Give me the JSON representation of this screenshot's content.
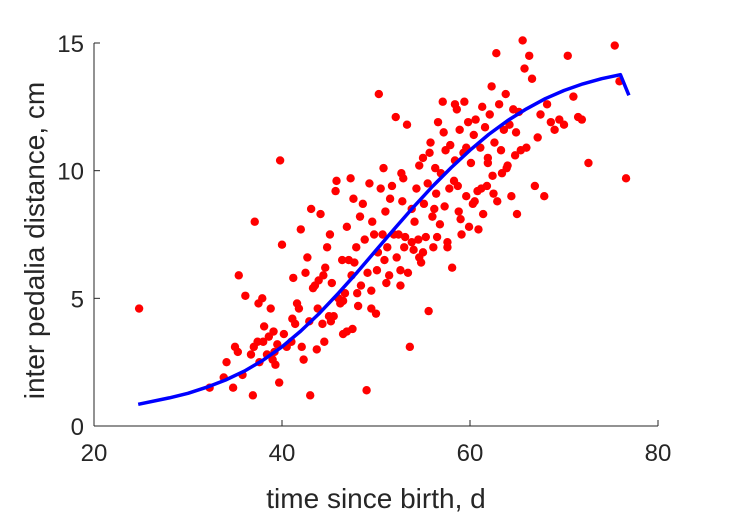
{
  "chart_data": {
    "type": "scatter",
    "title": "",
    "xlabel": "time since birth, d",
    "ylabel": "inter pedalia distance, cm",
    "xlim": [
      20,
      80
    ],
    "ylim": [
      0,
      15
    ],
    "xticks": [
      20,
      40,
      60,
      80
    ],
    "yticks": [
      0,
      5,
      10,
      15
    ],
    "grid": false,
    "legend": "none",
    "colors": {
      "points": "#ff0000",
      "fit": "#0000ff",
      "axis": "#262626"
    },
    "series": [
      {
        "type": "scatter",
        "points": [
          [
            24.8,
            4.6
          ],
          [
            32.3,
            1.5
          ],
          [
            33.8,
            1.9
          ],
          [
            34.1,
            2.5
          ],
          [
            34.8,
            1.5
          ],
          [
            35.0,
            3.1
          ],
          [
            35.3,
            2.9
          ],
          [
            35.4,
            5.9
          ],
          [
            35.8,
            2.0
          ],
          [
            36.1,
            5.1
          ],
          [
            36.7,
            2.8
          ],
          [
            36.9,
            1.2
          ],
          [
            37.0,
            3.1
          ],
          [
            37.1,
            8.0
          ],
          [
            37.4,
            3.3
          ],
          [
            37.5,
            4.8
          ],
          [
            37.6,
            2.5
          ],
          [
            37.9,
            5.0
          ],
          [
            38.0,
            3.3
          ],
          [
            38.4,
            2.8
          ],
          [
            38.6,
            3.5
          ],
          [
            38.8,
            4.6
          ],
          [
            39.0,
            2.6
          ],
          [
            39.1,
            3.7
          ],
          [
            39.3,
            2.4
          ],
          [
            39.5,
            3.2
          ],
          [
            39.7,
            1.7
          ],
          [
            39.8,
            10.4
          ],
          [
            40.0,
            7.1
          ],
          [
            40.2,
            3.6
          ],
          [
            40.5,
            3.1
          ],
          [
            41.0,
            3.3
          ],
          [
            41.2,
            5.8
          ],
          [
            41.4,
            4.0
          ],
          [
            41.6,
            4.8
          ],
          [
            41.8,
            4.6
          ],
          [
            42.0,
            7.7
          ],
          [
            42.1,
            3.1
          ],
          [
            42.3,
            2.6
          ],
          [
            42.5,
            6.0
          ],
          [
            42.7,
            6.6
          ],
          [
            42.9,
            4.1
          ],
          [
            43.0,
            1.2
          ],
          [
            43.1,
            8.5
          ],
          [
            43.3,
            5.4
          ],
          [
            43.5,
            5.5
          ],
          [
            43.7,
            3.0
          ],
          [
            43.9,
            5.7
          ],
          [
            44.1,
            8.3
          ],
          [
            44.3,
            4.0
          ],
          [
            44.5,
            3.3
          ],
          [
            44.6,
            6.2
          ],
          [
            44.8,
            7.0
          ],
          [
            45.0,
            4.3
          ],
          [
            45.1,
            7.5
          ],
          [
            45.3,
            5.6
          ],
          [
            45.5,
            4.3
          ],
          [
            45.7,
            9.2
          ],
          [
            45.8,
            9.6
          ],
          [
            46.0,
            5.0
          ],
          [
            46.2,
            4.8
          ],
          [
            46.4,
            6.5
          ],
          [
            46.5,
            3.6
          ],
          [
            46.7,
            5.2
          ],
          [
            46.9,
            7.8
          ],
          [
            47.1,
            6.5
          ],
          [
            47.3,
            9.7
          ],
          [
            47.4,
            5.9
          ],
          [
            47.5,
            3.8
          ],
          [
            47.7,
            6.4
          ],
          [
            47.9,
            7.0
          ],
          [
            48.1,
            4.7
          ],
          [
            48.3,
            8.2
          ],
          [
            48.4,
            5.5
          ],
          [
            48.6,
            8.7
          ],
          [
            48.8,
            7.3
          ],
          [
            49.0,
            1.4
          ],
          [
            49.1,
            6.0
          ],
          [
            49.3,
            9.5
          ],
          [
            49.5,
            5.3
          ],
          [
            49.6,
            8.0
          ],
          [
            49.8,
            7.5
          ],
          [
            50.0,
            4.4
          ],
          [
            50.2,
            6.8
          ],
          [
            50.3,
            13.0
          ],
          [
            50.5,
            9.3
          ],
          [
            50.7,
            7.5
          ],
          [
            50.9,
            6.5
          ],
          [
            51.0,
            8.4
          ],
          [
            51.2,
            7.0
          ],
          [
            51.4,
            5.9
          ],
          [
            51.5,
            8.9
          ],
          [
            51.7,
            9.4
          ],
          [
            51.9,
            7.5
          ],
          [
            52.1,
            12.1
          ],
          [
            52.2,
            6.6
          ],
          [
            52.4,
            7.5
          ],
          [
            52.6,
            5.5
          ],
          [
            52.8,
            8.8
          ],
          [
            52.9,
            9.7
          ],
          [
            53.1,
            7.4
          ],
          [
            53.3,
            11.8
          ],
          [
            53.4,
            6.0
          ],
          [
            53.6,
            3.1
          ],
          [
            53.8,
            8.5
          ],
          [
            54.0,
            6.9
          ],
          [
            54.1,
            8.0
          ],
          [
            54.3,
            9.3
          ],
          [
            54.5,
            7.3
          ],
          [
            54.6,
            10.2
          ],
          [
            54.8,
            6.4
          ],
          [
            55.0,
            10.5
          ],
          [
            55.1,
            8.7
          ],
          [
            55.3,
            7.4
          ],
          [
            55.5,
            9.5
          ],
          [
            55.6,
            4.5
          ],
          [
            55.8,
            11.1
          ],
          [
            56.0,
            8.2
          ],
          [
            56.1,
            7.0
          ],
          [
            56.3,
            10.1
          ],
          [
            56.4,
            9.1
          ],
          [
            56.6,
            11.9
          ],
          [
            56.8,
            7.9
          ],
          [
            56.9,
            9.9
          ],
          [
            57.1,
            12.7
          ],
          [
            57.3,
            8.6
          ],
          [
            57.4,
            10.8
          ],
          [
            57.6,
            7.2
          ],
          [
            57.8,
            9.3
          ],
          [
            57.9,
            11.0
          ],
          [
            58.1,
            6.2
          ],
          [
            58.3,
            9.6
          ],
          [
            58.4,
            10.4
          ],
          [
            58.6,
            12.4
          ],
          [
            58.8,
            8.4
          ],
          [
            58.9,
            11.6
          ],
          [
            59.1,
            7.5
          ],
          [
            59.3,
            10.7
          ],
          [
            59.4,
            12.7
          ],
          [
            59.6,
            9.0
          ],
          [
            59.8,
            11.9
          ],
          [
            59.9,
            7.8
          ],
          [
            60.1,
            10.3
          ],
          [
            60.3,
            8.7
          ],
          [
            60.4,
            11.4
          ],
          [
            60.6,
            12.0
          ],
          [
            60.8,
            9.2
          ],
          [
            60.9,
            7.7
          ],
          [
            61.1,
            10.9
          ],
          [
            61.3,
            12.5
          ],
          [
            61.4,
            8.3
          ],
          [
            61.6,
            11.7
          ],
          [
            61.8,
            9.4
          ],
          [
            61.9,
            10.5
          ],
          [
            62.1,
            12.2
          ],
          [
            62.3,
            13.3
          ],
          [
            62.4,
            9.8
          ],
          [
            62.6,
            11.1
          ],
          [
            62.8,
            14.6
          ],
          [
            62.9,
            8.8
          ],
          [
            63.1,
            12.6
          ],
          [
            63.3,
            10.8
          ],
          [
            63.4,
            9.9
          ],
          [
            63.6,
            11.6
          ],
          [
            63.8,
            13.0
          ],
          [
            64.0,
            10.2
          ],
          [
            64.2,
            11.8
          ],
          [
            64.4,
            9.0
          ],
          [
            64.6,
            12.4
          ],
          [
            64.8,
            10.6
          ],
          [
            65.0,
            8.3
          ],
          [
            65.2,
            12.3
          ],
          [
            65.4,
            10.8
          ],
          [
            65.6,
            15.1
          ],
          [
            65.8,
            14.0
          ],
          [
            66.0,
            10.9
          ],
          [
            66.3,
            14.5
          ],
          [
            66.6,
            13.6
          ],
          [
            66.9,
            9.4
          ],
          [
            67.2,
            11.3
          ],
          [
            67.5,
            12.2
          ],
          [
            67.9,
            9.0
          ],
          [
            68.2,
            12.6
          ],
          [
            68.6,
            11.9
          ],
          [
            69.0,
            11.6
          ],
          [
            69.5,
            12.0
          ],
          [
            70.0,
            11.8
          ],
          [
            70.4,
            14.5
          ],
          [
            71.0,
            12.9
          ],
          [
            71.5,
            12.1
          ],
          [
            71.9,
            12.0
          ],
          [
            72.6,
            10.3
          ],
          [
            75.4,
            14.9
          ],
          [
            75.9,
            13.5
          ],
          [
            76.6,
            9.7
          ],
          [
            46.5,
            4.9
          ],
          [
            48.0,
            5.2
          ],
          [
            49.5,
            4.6
          ],
          [
            51.1,
            5.6
          ],
          [
            52.6,
            6.1
          ],
          [
            53.8,
            7.2
          ],
          [
            55.0,
            6.8
          ],
          [
            56.5,
            7.4
          ],
          [
            57.6,
            7.0
          ],
          [
            59.0,
            8.1
          ],
          [
            60.5,
            8.8
          ],
          [
            61.2,
            9.3
          ],
          [
            62.5,
            9.1
          ],
          [
            63.9,
            10.1
          ],
          [
            43.8,
            4.6
          ],
          [
            45.2,
            4.1
          ],
          [
            46.9,
            3.7
          ],
          [
            50.1,
            6.1
          ],
          [
            53.0,
            7.0
          ],
          [
            54.6,
            6.6
          ],
          [
            56.2,
            8.5
          ],
          [
            58.7,
            9.4
          ],
          [
            41.1,
            4.2
          ],
          [
            39.2,
            2.9
          ],
          [
            38.1,
            3.9
          ],
          [
            44.4,
            5.9
          ],
          [
            47.6,
            8.9
          ],
          [
            50.8,
            10.1
          ],
          [
            52.7,
            9.9
          ],
          [
            55.7,
            10.7
          ],
          [
            57.2,
            11.5
          ],
          [
            58.4,
            12.6
          ],
          [
            59.6,
            10.9
          ],
          [
            61.9,
            10.3
          ],
          [
            64.9,
            11.5
          ]
        ]
      },
      {
        "type": "line",
        "points": [
          [
            24.7,
            0.85
          ],
          [
            28,
            1.1
          ],
          [
            30,
            1.28
          ],
          [
            32,
            1.52
          ],
          [
            34,
            1.8
          ],
          [
            36,
            2.15
          ],
          [
            38,
            2.58
          ],
          [
            40,
            3.1
          ],
          [
            42,
            3.72
          ],
          [
            44,
            4.42
          ],
          [
            46,
            5.2
          ],
          [
            48,
            6.02
          ],
          [
            50,
            6.88
          ],
          [
            52,
            7.74
          ],
          [
            54,
            8.58
          ],
          [
            56,
            9.38
          ],
          [
            58,
            10.12
          ],
          [
            60,
            10.8
          ],
          [
            62,
            11.42
          ],
          [
            64,
            11.96
          ],
          [
            66,
            12.42
          ],
          [
            68,
            12.82
          ],
          [
            70,
            13.14
          ],
          [
            72,
            13.4
          ],
          [
            74,
            13.6
          ],
          [
            76,
            13.76
          ],
          [
            76.9,
            12.95
          ]
        ]
      }
    ]
  }
}
